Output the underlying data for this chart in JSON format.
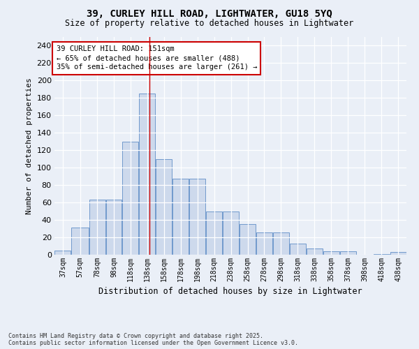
{
  "title_line1": "39, CURLEY HILL ROAD, LIGHTWATER, GU18 5YQ",
  "title_line2": "Size of property relative to detached houses in Lightwater",
  "xlabel": "Distribution of detached houses by size in Lightwater",
  "ylabel": "Number of detached properties",
  "bar_color": "#cdd9ec",
  "bar_edge_color": "#7099cc",
  "background_color": "#eaeff7",
  "grid_color": "#ffffff",
  "bin_edges": [
    37,
    57,
    78,
    98,
    118,
    138,
    158,
    178,
    198,
    218,
    238,
    258,
    278,
    298,
    318,
    338,
    358,
    378,
    398,
    418,
    438,
    458
  ],
  "bin_labels": [
    "37sqm",
    "57sqm",
    "78sqm",
    "98sqm",
    "118sqm",
    "138sqm",
    "158sqm",
    "178sqm",
    "198sqm",
    "218sqm",
    "238sqm",
    "258sqm",
    "278sqm",
    "298sqm",
    "318sqm",
    "338sqm",
    "358sqm",
    "378sqm",
    "398sqm",
    "418sqm",
    "438sqm"
  ],
  "values": [
    5,
    31,
    63,
    63,
    130,
    185,
    110,
    87,
    87,
    50,
    50,
    35,
    26,
    26,
    13,
    7,
    4,
    4,
    0,
    1,
    3
  ],
  "ylim": [
    0,
    250
  ],
  "yticks": [
    0,
    20,
    40,
    60,
    80,
    100,
    120,
    140,
    160,
    180,
    200,
    220,
    240
  ],
  "red_line_x": 151,
  "annotation_title": "39 CURLEY HILL ROAD: 151sqm",
  "annotation_line2": "← 65% of detached houses are smaller (488)",
  "annotation_line3": "35% of semi-detached houses are larger (261) →",
  "annotation_box_color": "#ffffff",
  "annotation_edge_color": "#cc0000",
  "red_line_color": "#cc0000",
  "footer_line1": "Contains HM Land Registry data © Crown copyright and database right 2025.",
  "footer_line2": "Contains public sector information licensed under the Open Government Licence v3.0."
}
